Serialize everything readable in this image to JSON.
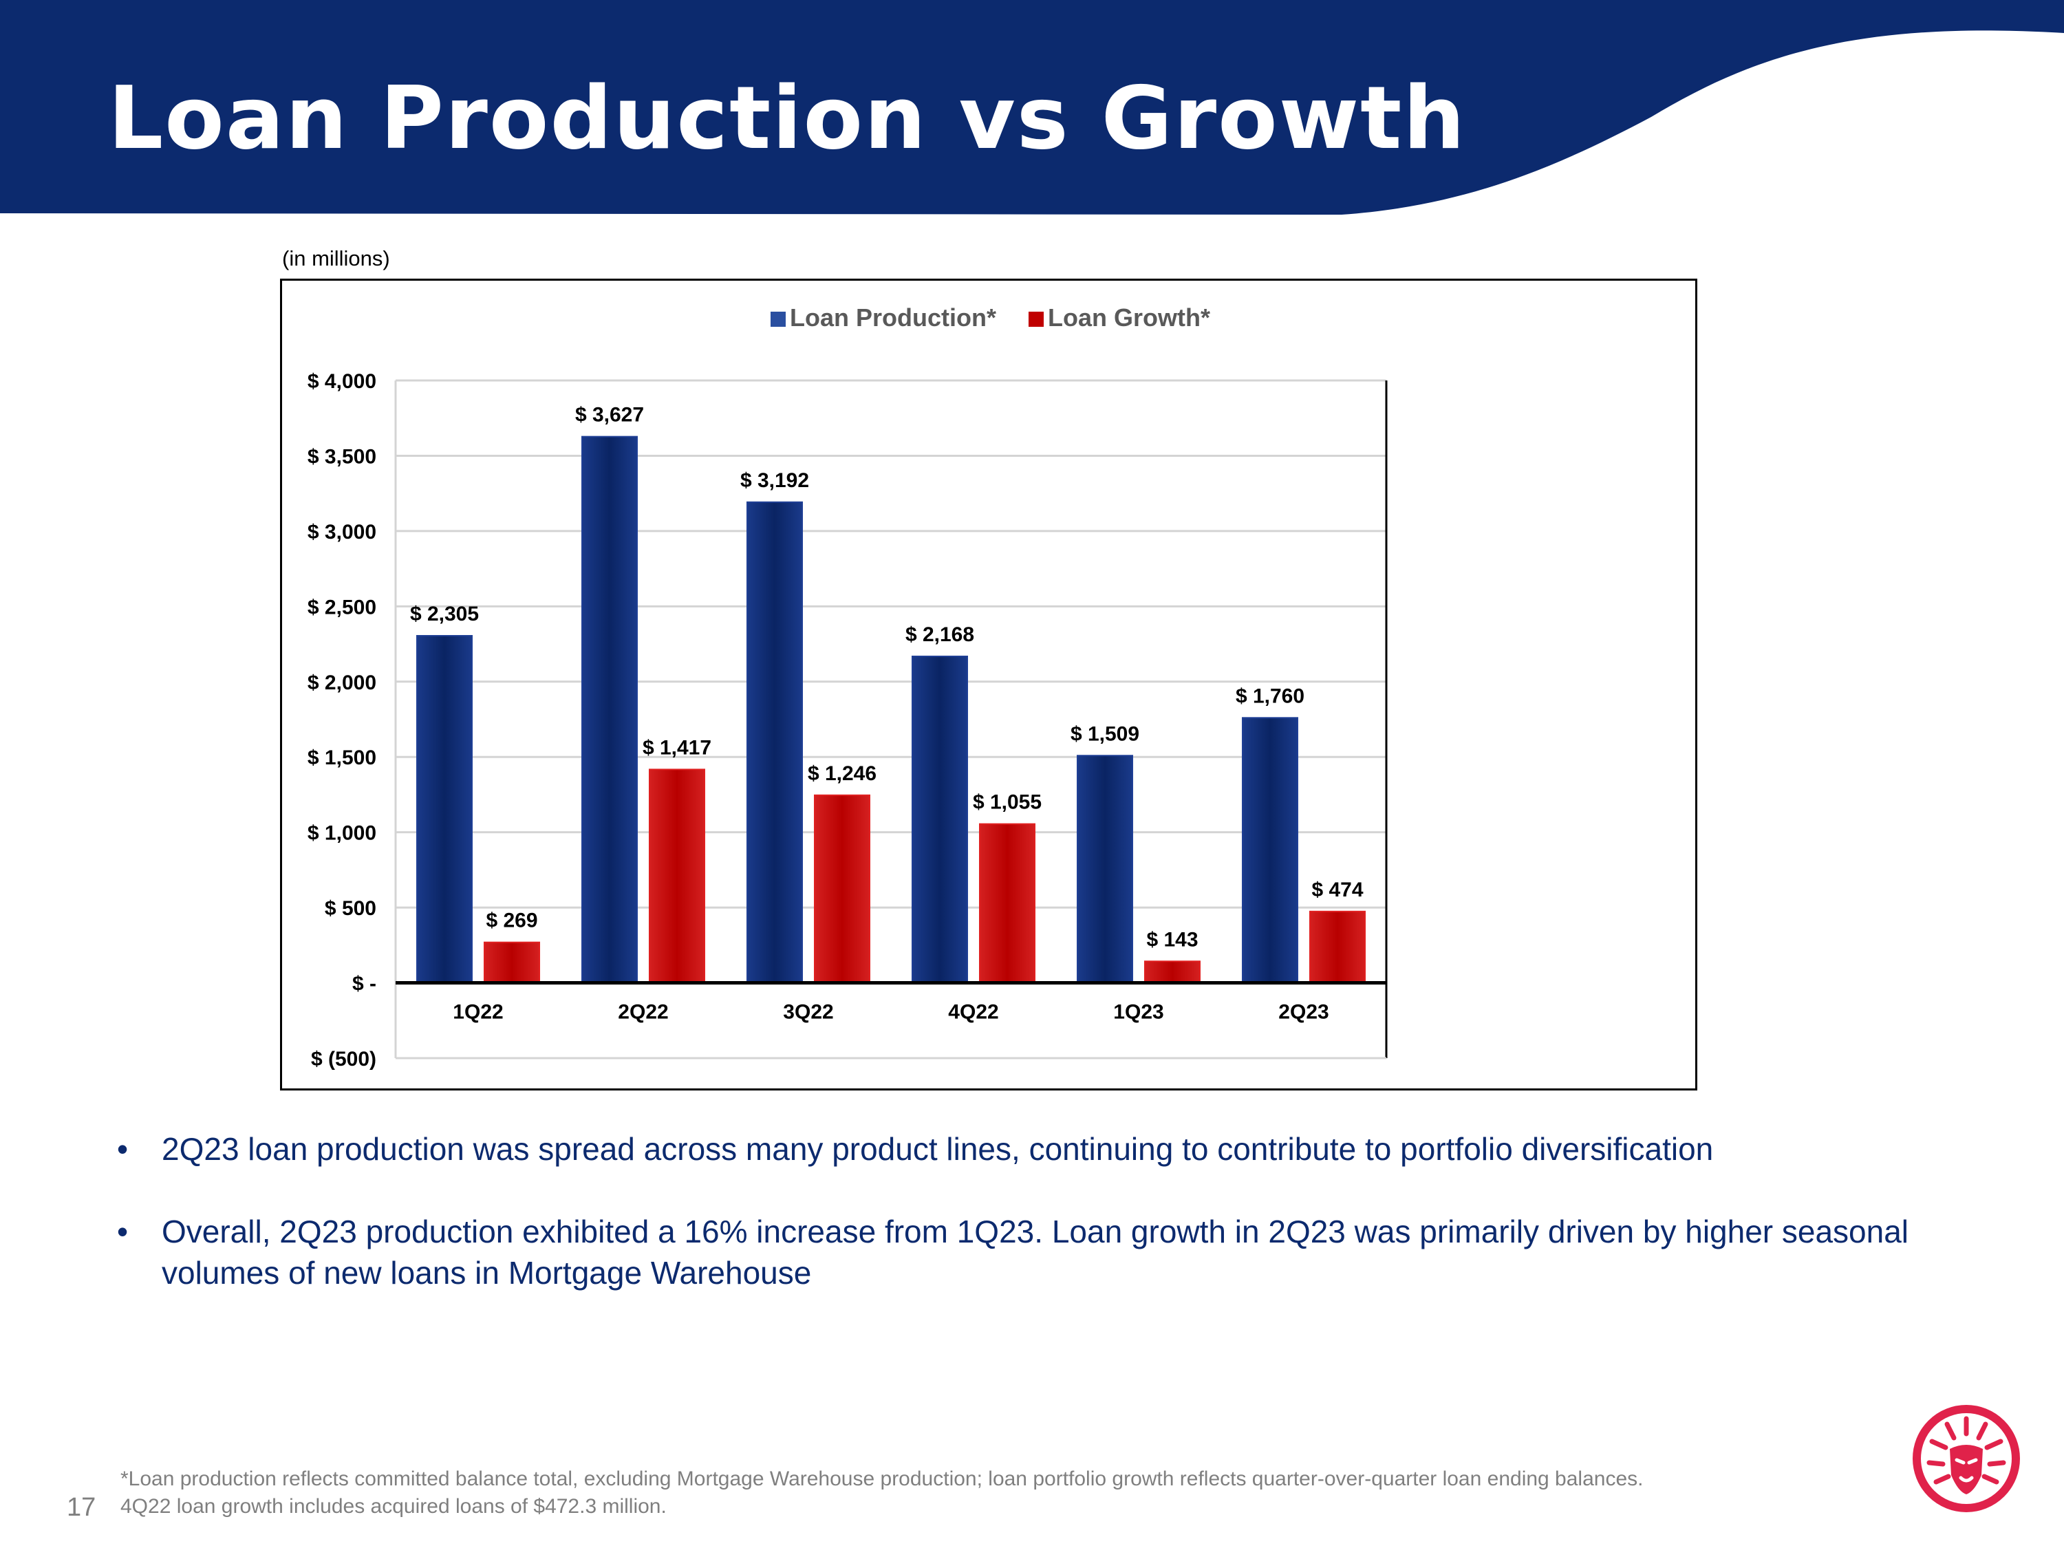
{
  "slide": {
    "title": "Loan Production vs Growth",
    "units_note": "(in millions)",
    "page_number": "17",
    "colors": {
      "header": "#0c2a6e",
      "production": "#0a2463",
      "growth": "#c00000",
      "logo": "#e0224a"
    }
  },
  "chart_data": {
    "type": "bar",
    "categories": [
      "1Q22",
      "2Q22",
      "3Q22",
      "4Q22",
      "1Q23",
      "2Q23"
    ],
    "series": [
      {
        "name": "Loan Production*",
        "values": [
          2305,
          3627,
          3192,
          2168,
          1509,
          1760
        ],
        "labels": [
          "$ 2,305",
          "$ 3,627",
          "$ 3,192",
          "$ 2,168",
          "$ 1,509",
          "$ 1,760"
        ]
      },
      {
        "name": "Loan Growth*",
        "values": [
          269,
          1417,
          1246,
          1055,
          143,
          474
        ],
        "labels": [
          "$ 269",
          "$ 1,417",
          "$ 1,246",
          "$ 1,055",
          "$ 143",
          "$ 474"
        ]
      }
    ],
    "ylim": [
      -500,
      4000
    ],
    "yticks": [
      4000,
      3500,
      3000,
      2500,
      2000,
      1500,
      1000,
      500,
      0,
      -500
    ],
    "ytick_labels": [
      "$ 4,000",
      "$ 3,500",
      "$ 3,000",
      "$ 2,500",
      "$ 2,000",
      "$ 1,500",
      "$ 1,000",
      "$ 500",
      "$ -",
      "$ (500)"
    ],
    "legend": "top-center",
    "grid": true
  },
  "bullets": [
    "2Q23 loan production was spread across many product lines, continuing to contribute to portfolio diversification",
    "Overall, 2Q23 production exhibited a 16% increase from 1Q23.  Loan growth in 2Q23 was primarily driven by higher seasonal volumes of new loans in Mortgage Warehouse"
  ],
  "bullet_symbol": "•",
  "footnote": {
    "line1": "*Loan production reflects committed balance total, excluding Mortgage Warehouse production; loan portfolio growth reflects quarter-over-quarter loan ending balances.",
    "line2": "4Q22 loan growth includes acquired loans of $472.3 million."
  },
  "icons": {
    "logo": "lion-logo-icon"
  }
}
